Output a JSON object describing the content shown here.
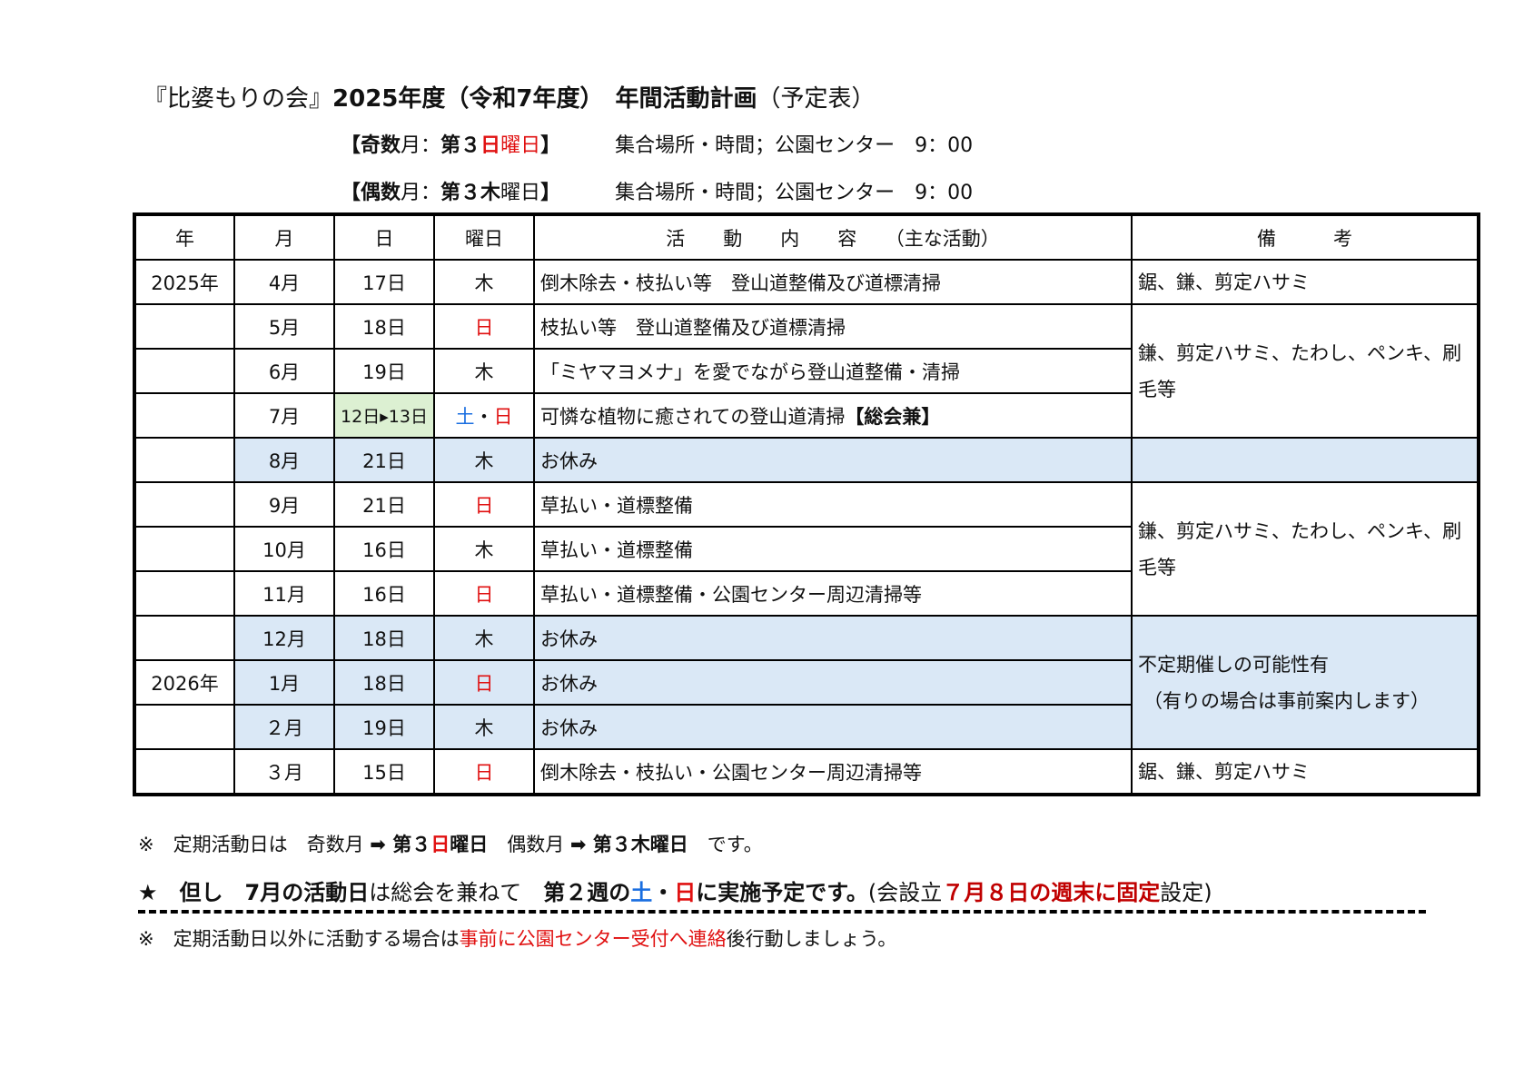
{
  "title": [
    {
      "text": "『比婆もりの会』",
      "s": ""
    },
    {
      "text": "2025年度（令和7年度）",
      "s": "b"
    },
    {
      "text": "　年間活動計画",
      "s": "b"
    },
    {
      "text": "（予定表）",
      "s": ""
    }
  ],
  "schedule_lines": [
    {
      "parts": [
        {
          "text": "【奇数",
          "s": "b"
        },
        {
          "text": "月：",
          "s": ""
        },
        {
          "text": "第３",
          "s": "b"
        },
        {
          "text": "日",
          "s": "b red"
        },
        {
          "text": "曜日",
          "s": "red"
        },
        {
          "text": "】",
          "s": "b"
        }
      ],
      "meeting": "集合場所・時間；公園センター　9：00"
    },
    {
      "parts": [
        {
          "text": "【偶数",
          "s": "b"
        },
        {
          "text": "月：",
          "s": ""
        },
        {
          "text": "第３木",
          "s": "b"
        },
        {
          "text": "曜日",
          "s": ""
        },
        {
          "text": "】",
          "s": "b"
        }
      ],
      "meeting": "集合場所・時間；公園センター　9：00"
    }
  ],
  "table": {
    "headers": [
      "年",
      "月",
      "日",
      "曜日",
      "活　　動　　内　　容　　（主な活動）",
      "備　　　考"
    ],
    "rows": [
      {
        "year": "2025年",
        "month": "4月",
        "day": "17日",
        "dow": [
          {
            "text": "木",
            "c": ""
          }
        ],
        "activity": "倒木除去・枝払い等　登山道整備及び道標清掃",
        "remark": "鋸、鎌、剪定ハサミ",
        "span": 1
      },
      {
        "year": "",
        "month": "5月",
        "day": "18日",
        "dow": [
          {
            "text": "日",
            "c": "red"
          }
        ],
        "activity": "枝払い等　登山道整備及び道標清掃",
        "remark": "鎌、剪定ハサミ、たわし、ペンキ、刷毛等",
        "span": 3
      },
      {
        "year": "",
        "month": "6月",
        "day": "19日",
        "dow": [
          {
            "text": "木",
            "c": ""
          }
        ],
        "activity": "「ミヤマヨメナ」を愛でながら登山道整備・清掃"
      },
      {
        "year": "",
        "month": "7月",
        "day": "12日▸13日",
        "day_highlight": "green",
        "dow": [
          {
            "text": "土",
            "c": "bl"
          },
          {
            "text": "・",
            "c": ""
          },
          {
            "text": "日",
            "c": "red"
          }
        ],
        "activity": "可憐な植物に癒されての登山道清掃",
        "activity_bold": "【総会兼】"
      },
      {
        "year": "",
        "month": "8月",
        "day": "21日",
        "dow": [
          {
            "text": "木",
            "c": ""
          }
        ],
        "activity": "お休み",
        "shade": "blue",
        "remark": "",
        "span": 1,
        "remark_shade": "blue"
      },
      {
        "year": "",
        "month": "9月",
        "day": "21日",
        "dow": [
          {
            "text": "日",
            "c": "red"
          }
        ],
        "activity": "草払い・道標整備",
        "remark": "鎌、剪定ハサミ、たわし、ペンキ、刷毛等",
        "span": 3
      },
      {
        "year": "",
        "month": "10月",
        "day": "16日",
        "dow": [
          {
            "text": "木",
            "c": ""
          }
        ],
        "activity": "草払い・道標整備"
      },
      {
        "year": "",
        "month": "11月",
        "day": "16日",
        "dow": [
          {
            "text": "日",
            "c": "red"
          }
        ],
        "activity": "草払い・道標整備・公園センター周辺清掃等"
      },
      {
        "year": "",
        "month": "12月",
        "day": "18日",
        "dow": [
          {
            "text": "木",
            "c": ""
          }
        ],
        "activity": "お休み",
        "shade": "blue",
        "remark": "不定期催しの可能性有",
        "remark2": "（有りの場合は事前案内します）",
        "span": 3,
        "remark_shade": "blue"
      },
      {
        "year": "2026年",
        "month": "1月",
        "day": "18日",
        "dow": [
          {
            "text": "日",
            "c": "red"
          }
        ],
        "activity": "お休み",
        "shade": "blue"
      },
      {
        "year": "",
        "month": "２月",
        "day": "19日",
        "dow": [
          {
            "text": "木",
            "c": ""
          }
        ],
        "activity": "お休み",
        "shade": "blue"
      },
      {
        "year": "",
        "month": "３月",
        "day": "15日",
        "dow": [
          {
            "text": "日",
            "c": "red"
          }
        ],
        "activity": "倒木除去・枝払い・公園センター周辺清掃等",
        "remark": "鋸、鎌、剪定ハサミ",
        "span": 1
      }
    ]
  },
  "notes": [
    [
      {
        "text": "※　定期活動日は　奇数月 ",
        "s": ""
      },
      {
        "text": "➡ 第３",
        "s": "b"
      },
      {
        "text": "日",
        "s": "b red"
      },
      {
        "text": "曜日",
        "s": "b"
      },
      {
        "text": "　偶数月 ",
        "s": ""
      },
      {
        "text": "➡ 第３木曜日",
        "s": "b"
      },
      {
        "text": "　です。",
        "s": ""
      }
    ],
    [
      {
        "text": "★　但し　7月の活動日",
        "s": "b"
      },
      {
        "text": "は総会を兼ねて　",
        "s": ""
      },
      {
        "text": "第２週の",
        "s": "b"
      },
      {
        "text": "土",
        "s": "b bl"
      },
      {
        "text": "・",
        "s": "b"
      },
      {
        "text": "日",
        "s": "b red"
      },
      {
        "text": "に実施予定です。",
        "s": "b"
      },
      {
        "text": "(会設立",
        "s": ""
      },
      {
        "text": "７月８日の週末に固定",
        "s": "dred"
      },
      {
        "text": "設定)",
        "s": ""
      }
    ],
    [
      {
        "text": "※　定期活動日以外に活動する場合は",
        "s": ""
      },
      {
        "text": "事前に公園センター受付へ連絡",
        "s": "red"
      },
      {
        "text": "後行動しましょう。",
        "s": ""
      }
    ]
  ],
  "colors": {
    "shade_blue": "#dae8f6",
    "shade_green": "#dcf0d2",
    "red": "#e01010",
    "blue": "#1a6ee0",
    "dark_red": "#c00000"
  }
}
